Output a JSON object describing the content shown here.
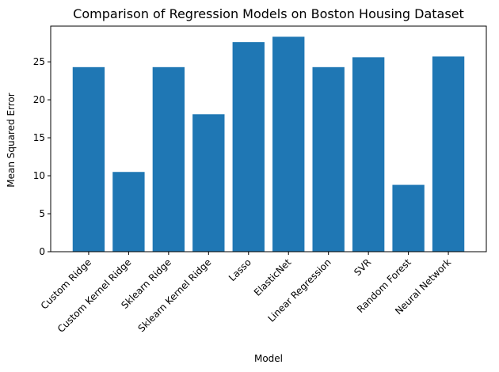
{
  "chart_data": {
    "type": "bar",
    "title": "Comparison of Regression Models on Boston Housing Dataset",
    "xlabel": "Model",
    "ylabel": "Mean Squared Error",
    "categories": [
      "Custom Ridge",
      "Custom Kernel Ridge",
      "Sklearn Ridge",
      "Sklearn Kernel Ridge",
      "Lasso",
      "ElasticNet",
      "Linear Regression",
      "SVR",
      "Random Forest",
      "Neural Network"
    ],
    "values": [
      24.3,
      10.5,
      24.3,
      18.1,
      27.6,
      28.3,
      24.3,
      25.6,
      8.8,
      25.7
    ],
    "yticks": [
      0,
      5,
      10,
      15,
      20,
      25
    ],
    "ylim": [
      0,
      29.7
    ],
    "bar_color": "#1f77b4",
    "grid": false,
    "legend": "none"
  }
}
